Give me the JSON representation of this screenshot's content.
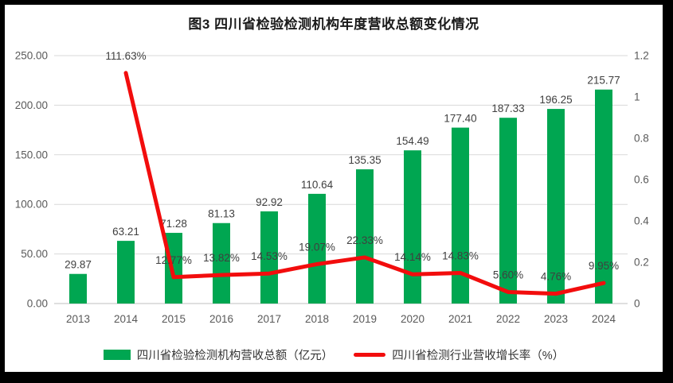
{
  "title": "图3  四川省检验检测机构年度营收总额变化情况",
  "legend": [
    {
      "label": "四川省检验检测机构营收总额（亿元）",
      "marker": "rect",
      "color": "#00A651"
    },
    {
      "label": "四川省检测行业营收增长率（%）",
      "marker": "line",
      "color": "#F20D0D"
    }
  ],
  "colors": {
    "bar": "#00A651",
    "line": "#F20D0D",
    "grid": "#D9D9D9",
    "axis": "#BFBFBF",
    "tick_text": "#595959",
    "label_text": "#3f3f3f"
  },
  "chart_data": {
    "type": "combo",
    "title": "图3  四川省检验检测机构年度营收总额变化情况",
    "categories": [
      "2013",
      "2014",
      "2015",
      "2016",
      "2017",
      "2018",
      "2019",
      "2020",
      "2021",
      "2022",
      "2023",
      "2024"
    ],
    "series": [
      {
        "name": "四川省检验检测机构营收总额（亿元）",
        "type": "bar",
        "axis": "left",
        "color": "#00A651",
        "values": [
          29.87,
          63.21,
          71.28,
          81.13,
          92.92,
          110.64,
          135.35,
          154.49,
          177.4,
          187.33,
          196.25,
          215.77
        ],
        "labels": [
          "29.87",
          "63.21",
          "71.28",
          "81.13",
          "92.92",
          "110.64",
          "135.35",
          "154.49",
          "177.40",
          "187.33",
          "196.25",
          "215.77"
        ]
      },
      {
        "name": "四川省检测行业营收增长率（%）",
        "type": "line",
        "axis": "right",
        "color": "#F20D0D",
        "values": [
          null,
          1.1163,
          0.1277,
          0.1382,
          0.1453,
          0.1907,
          0.2233,
          0.1414,
          0.1483,
          0.056,
          0.0476,
          0.0995
        ],
        "labels": [
          "",
          "111.63%",
          "12.77%",
          "13.82%",
          "14.53%",
          "19.07%",
          "22.33%",
          "14.14%",
          "14.83%",
          "5.60%",
          "4.76%",
          "9.95%"
        ]
      }
    ],
    "left_axis": {
      "min": 0,
      "max": 250,
      "tick_labels": [
        "0.00",
        "50.00",
        "100.00",
        "150.00",
        "200.00",
        "250.00"
      ],
      "tick_values": [
        0,
        50,
        100,
        150,
        200,
        250
      ]
    },
    "right_axis": {
      "min": 0,
      "max": 1.2,
      "tick_labels": [
        "0",
        "0.2",
        "0.4",
        "0.6",
        "0.8",
        "1",
        "1.2"
      ],
      "tick_values": [
        0,
        0.2,
        0.4,
        0.6,
        0.8,
        1,
        1.2
      ]
    },
    "grid": true,
    "legend_position": "bottom"
  }
}
